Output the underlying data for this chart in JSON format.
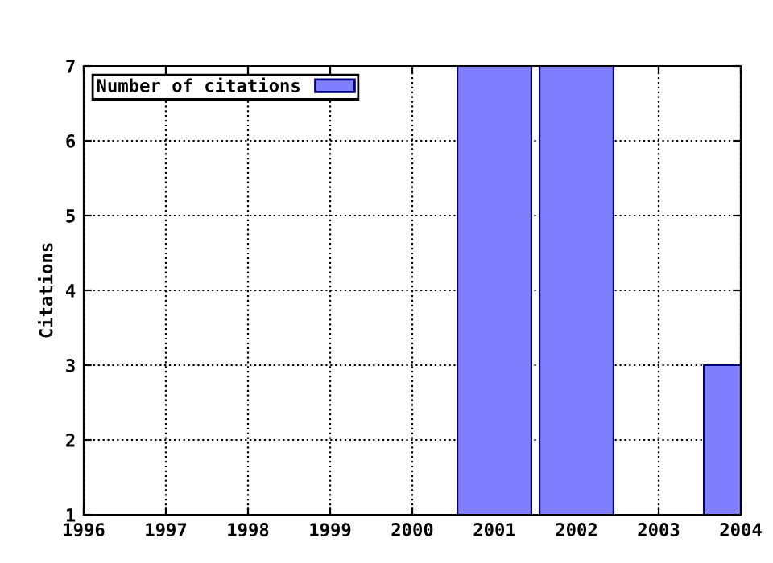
{
  "chart_data": {
    "type": "bar",
    "ylabel": "Citations",
    "x": [
      2001,
      2002,
      2004
    ],
    "series": [
      {
        "name": "Number of citations",
        "color": "#8080ff",
        "values": [
          7,
          7,
          3
        ]
      }
    ],
    "xlim": [
      1996,
      2004
    ],
    "xticks": [
      1996,
      1997,
      1998,
      1999,
      2000,
      2001,
      2002,
      2003,
      2004
    ],
    "ylim": [
      1,
      7
    ],
    "yticks": [
      1,
      2,
      3,
      4,
      5,
      6,
      7
    ],
    "grid": true,
    "legend": "top left"
  }
}
